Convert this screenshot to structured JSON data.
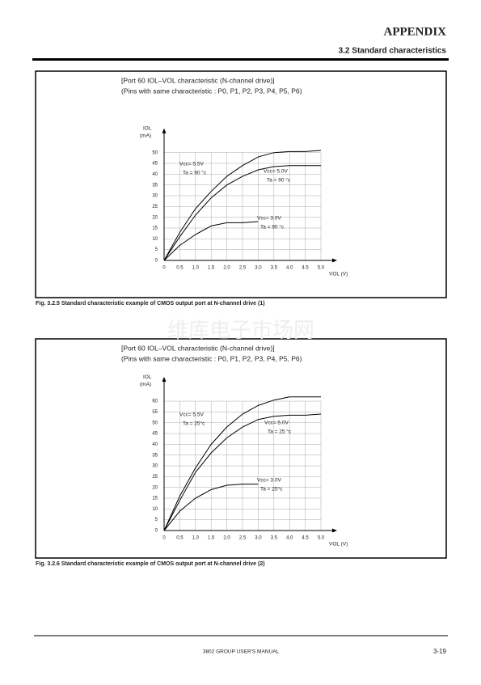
{
  "header": {
    "title": "APPENDIX",
    "section": "3.2 Standard characteristics"
  },
  "watermark": "维库电子市场网",
  "chart_data": [
    {
      "type": "line",
      "title": "[Port 60 IOL–VOL characteristic (N-channel drive)]",
      "subtitle": "(Pins with same characteristic : P0, P1, P2, P3, P4, P5, P6)",
      "caption": "Fig. 3.2.5 Standard characteristic example of CMOS output port at N-channel drive (1)",
      "ylabel": "IOL",
      "yunit": "(mA)",
      "xlabel": "VOL (V)",
      "x": [
        0,
        0.5,
        1.0,
        1.5,
        2.0,
        2.5,
        3.0,
        3.5,
        4.0,
        4.5,
        5.0
      ],
      "xlim": [
        0,
        5.0
      ],
      "xticks": [
        0,
        0.5,
        {
          "value": 1,
          "label": "1.0"
        },
        1.5,
        {
          "value": 2,
          "label": "2.0"
        },
        2.5,
        {
          "value": 3,
          "label": "3.0"
        },
        3.5,
        {
          "value": 4,
          "label": "4.0"
        },
        4.5,
        {
          "value": 5,
          "label": "5.0"
        }
      ],
      "ylim": [
        0,
        55
      ],
      "yticks": [
        0,
        5,
        10,
        15,
        20,
        25,
        30,
        35,
        40,
        45,
        50
      ],
      "grid": true,
      "series": [
        {
          "name": "Vcc= 5.5V",
          "condition": "Ta = 90 °c",
          "color": "#000000",
          "values": [
            0,
            13,
            24,
            32,
            39,
            44,
            48,
            50,
            50.5,
            50.5,
            51
          ]
        },
        {
          "name": "Vcc= 5.0V",
          "condition": "Ta = 90 °c",
          "color": "#000000",
          "values": [
            0,
            11,
            21,
            29,
            35,
            39,
            42,
            43.5,
            44,
            44,
            44
          ]
        },
        {
          "name": "Vcc= 3.0V",
          "condition": "Ta = 90 °c",
          "color": "#000000",
          "values": [
            0,
            7,
            12,
            16,
            17.5,
            17.5,
            18,
            null,
            null,
            null,
            null
          ]
        }
      ]
    },
    {
      "type": "line",
      "title": "[Port 60 IOL–VOL characteristic (N-channel drive)]",
      "subtitle": "(Pins with same characteristic : P0, P1, P2, P3, P4, P5, P6)",
      "caption": "Fig. 3.2.6 Standard characteristic example of CMOS output port at N-channel drive (2)",
      "ylabel": "IOL",
      "yunit": "(mA)",
      "xlabel": "VOL (V)",
      "x": [
        0,
        0.5,
        1.0,
        1.5,
        2.0,
        2.5,
        3.0,
        3.5,
        4.0,
        4.5,
        5.0
      ],
      "xlim": [
        0,
        5.0
      ],
      "xticks": [
        0,
        0.5,
        {
          "value": 1,
          "label": "1.0"
        },
        1.5,
        {
          "value": 2,
          "label": "2.0"
        },
        2.5,
        {
          "value": 3,
          "label": "3.0"
        },
        3.5,
        {
          "value": 4,
          "label": "4.0"
        },
        4.5,
        {
          "value": 5,
          "label": "5.0"
        }
      ],
      "ylim": [
        0,
        65
      ],
      "yticks": [
        0,
        5,
        10,
        15,
        20,
        25,
        30,
        35,
        40,
        45,
        50,
        55,
        60
      ],
      "grid": true,
      "series": [
        {
          "name": "Vcc= 5.5V",
          "condition": "Ta = 25°c",
          "color": "#000000",
          "values": [
            0,
            16,
            29,
            40,
            48,
            54,
            58,
            60.5,
            62,
            62,
            62
          ]
        },
        {
          "name": "Vcc= 5.0V",
          "condition": "Ta = 25 °c",
          "color": "#000000",
          "values": [
            0,
            14,
            27,
            36,
            43,
            48,
            51.5,
            53,
            53.5,
            53.5,
            54
          ]
        },
        {
          "name": "Vcc= 3.0V",
          "condition": "Ta = 25°c",
          "color": "#000000",
          "values": [
            0,
            9,
            15,
            19,
            21,
            21.5,
            21.5,
            null,
            null,
            null,
            null
          ]
        }
      ]
    }
  ],
  "footer": {
    "manual": "3802 GROUP USER'S MANUAL",
    "page": "3-19"
  }
}
